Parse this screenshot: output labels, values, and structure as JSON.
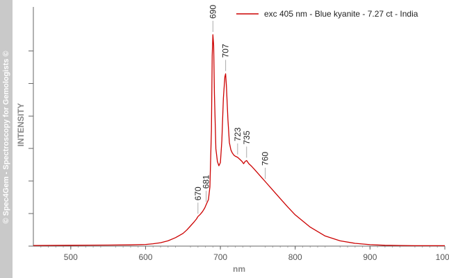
{
  "watermark": "© Spec4Gem - Spectroscopy for Gemologists ©",
  "colors": {
    "series": "#cc0000",
    "axis": "#666666",
    "band": "#c9c9c9"
  },
  "chart_data": {
    "type": "line",
    "xlabel": "nm",
    "ylabel": "INTENSITY",
    "xlim": [
      450,
      1000
    ],
    "ylim": [
      0,
      1
    ],
    "x_ticks": [
      500,
      600,
      700,
      800,
      900,
      1000
    ],
    "x_tick_labels": [
      "500",
      "600",
      "700",
      "800",
      "900",
      "1000"
    ],
    "y_ticks": [
      0,
      0.154,
      0.308,
      0.462,
      0.615,
      0.769,
      0.923
    ],
    "legend_position": "top-right",
    "series": [
      {
        "name": "exc 405 nm - Blue kyanite - 7.27 ct - India",
        "color": "#cc0000",
        "x": [
          450,
          500,
          550,
          580,
          600,
          610,
          620,
          630,
          640,
          650,
          655,
          660,
          665,
          668,
          670,
          673,
          676,
          679,
          681,
          684,
          686,
          688,
          689,
          690,
          691,
          692,
          694,
          696,
          698,
          700,
          702,
          704,
          706,
          707,
          708,
          710,
          712,
          714,
          716,
          718,
          720,
          723,
          726,
          729,
          731,
          733,
          735,
          738,
          741,
          745,
          750,
          755,
          760,
          770,
          780,
          790,
          800,
          820,
          840,
          860,
          880,
          900,
          920,
          940,
          960,
          1000
        ],
        "y": [
          0.003,
          0.004,
          0.005,
          0.006,
          0.008,
          0.011,
          0.016,
          0.025,
          0.04,
          0.06,
          0.076,
          0.095,
          0.115,
          0.128,
          0.14,
          0.15,
          0.163,
          0.18,
          0.196,
          0.22,
          0.28,
          0.55,
          0.9,
          1.0,
          0.95,
          0.72,
          0.46,
          0.4,
          0.38,
          0.395,
          0.5,
          0.7,
          0.8,
          0.815,
          0.76,
          0.6,
          0.49,
          0.455,
          0.44,
          0.43,
          0.425,
          0.42,
          0.41,
          0.4,
          0.39,
          0.4,
          0.405,
          0.39,
          0.38,
          0.365,
          0.345,
          0.325,
          0.305,
          0.265,
          0.225,
          0.185,
          0.148,
          0.09,
          0.048,
          0.025,
          0.013,
          0.007,
          0.004,
          0.003,
          0.002,
          0.002
        ]
      }
    ],
    "annotations": [
      {
        "x": 670,
        "y": 0.14,
        "label": "670"
      },
      {
        "x": 681,
        "y": 0.196,
        "label": "681"
      },
      {
        "x": 690,
        "y": 1.0,
        "label": "690"
      },
      {
        "x": 707,
        "y": 0.815,
        "label": "707"
      },
      {
        "x": 723,
        "y": 0.42,
        "label": "723"
      },
      {
        "x": 735,
        "y": 0.405,
        "label": "735"
      },
      {
        "x": 760,
        "y": 0.305,
        "label": "760"
      }
    ]
  }
}
